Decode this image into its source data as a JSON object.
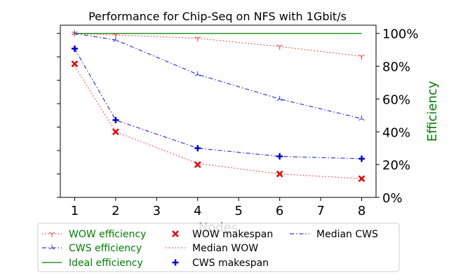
{
  "chart_data": {
    "type": "line",
    "title": "Performance for Chip-Seq on NFS with 1Gbit/s",
    "xlabel": "Nodes",
    "ylabel_right": "Efficiency",
    "x": [
      1,
      2,
      3,
      4,
      5,
      6,
      7,
      8
    ],
    "x_tick_labels": [
      "1",
      "2",
      "3",
      "4",
      "5",
      "6",
      "7",
      "8"
    ],
    "xlim": [
      0.65,
      8.35
    ],
    "right_axis": {
      "ylim": [
        0,
        1.05
      ],
      "ticks": [
        0,
        0.2,
        0.4,
        0.6,
        0.8,
        1.0
      ],
      "tick_labels": [
        "0%",
        "20%",
        "40%",
        "60%",
        "80%",
        "100%"
      ],
      "color": "#008000"
    },
    "left_axis": {
      "ylim": [
        0,
        7.35
      ],
      "ticks": [
        0,
        1,
        2,
        3,
        4,
        5,
        6,
        7
      ],
      "tick_labels": []
    },
    "legend_position": "bottom",
    "grid": false,
    "series": [
      {
        "name": "WOW efficiency",
        "axis": "right",
        "x": [
          1,
          2,
          4,
          6,
          8
        ],
        "values": [
          1.0,
          0.99,
          0.97,
          0.92,
          0.86
        ],
        "color": "#ff3333",
        "line_style": "dotted",
        "marker": "tri_down",
        "label_color": "#008000"
      },
      {
        "name": "CWS efficiency",
        "axis": "right",
        "x": [
          1,
          2,
          4,
          6,
          8
        ],
        "values": [
          1.0,
          0.96,
          0.75,
          0.6,
          0.48
        ],
        "color": "#3333ff",
        "line_style": "dashdot",
        "marker": "tri_up",
        "label_color": "#008000"
      },
      {
        "name": "Ideal efficiency",
        "axis": "right",
        "x": [
          1,
          8
        ],
        "values": [
          1.0,
          1.0
        ],
        "color": "#008000",
        "line_style": "solid",
        "marker": "none",
        "label_color": "#008000"
      },
      {
        "name": "WOW makespan",
        "axis": "left",
        "x": [
          1,
          2,
          4,
          6,
          8
        ],
        "values": [
          5.7,
          2.8,
          1.4,
          1.0,
          0.8
        ],
        "color": "#ee0000",
        "line_style": "none",
        "marker": "x",
        "label_color": "#000000"
      },
      {
        "name": "Median WOW",
        "axis": "left",
        "x": [
          1,
          2,
          4,
          6,
          8
        ],
        "values": [
          5.6,
          2.8,
          1.45,
          1.0,
          0.8
        ],
        "color": "#ff3333",
        "line_style": "dotted",
        "marker": "none",
        "label_color": "#000000"
      },
      {
        "name": "CWS makespan",
        "axis": "left",
        "x": [
          1,
          2,
          4,
          6,
          8
        ],
        "values": [
          6.35,
          3.3,
          2.1,
          1.75,
          1.65
        ],
        "color": "#0000cc",
        "line_style": "none",
        "marker": "plus",
        "label_color": "#000000"
      },
      {
        "name": "Median CWS",
        "axis": "left",
        "x": [
          1,
          2,
          4,
          6,
          8
        ],
        "values": [
          6.35,
          3.3,
          2.1,
          1.75,
          1.65
        ],
        "color": "#3333ff",
        "line_style": "dashdot",
        "marker": "none",
        "label_color": "#000000"
      }
    ]
  }
}
